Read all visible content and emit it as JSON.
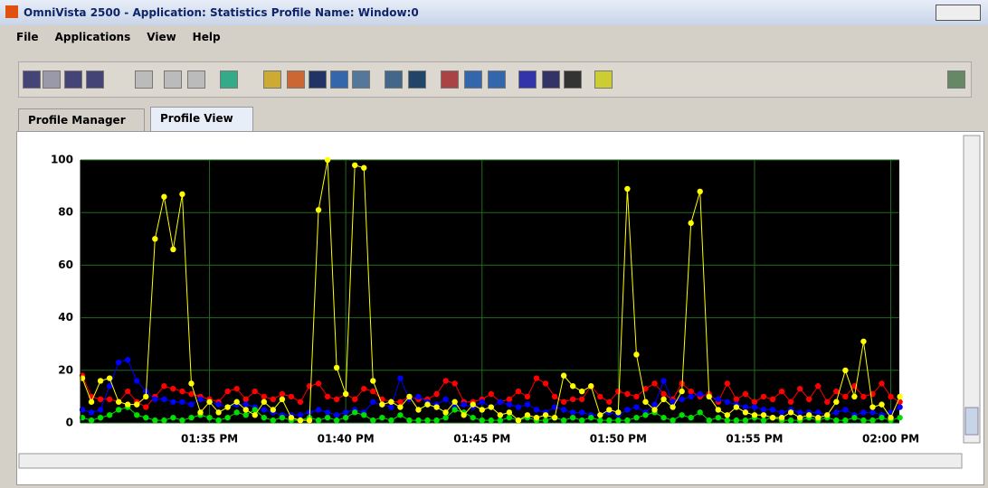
{
  "window": {
    "title": "OmniVista 2500 -  Application: Statistics  Profile Name:   Window:0"
  },
  "menu": [
    "File",
    "Applications",
    "View",
    "Help"
  ],
  "tabs": [
    "Profile Manager",
    "Profile View"
  ],
  "chart_data": {
    "type": "line",
    "categories": [
      null,
      null,
      null,
      null,
      null,
      null,
      null,
      null,
      null,
      null,
      null,
      null,
      null,
      null,
      "01:35 PM",
      null,
      null,
      null,
      null,
      null,
      null,
      null,
      null,
      null,
      null,
      null,
      null,
      null,
      null,
      "01:40 PM",
      null,
      null,
      null,
      null,
      null,
      null,
      null,
      null,
      null,
      null,
      null,
      null,
      null,
      null,
      "01:45 PM",
      null,
      null,
      null,
      null,
      null,
      null,
      null,
      null,
      null,
      null,
      null,
      null,
      null,
      null,
      "01:50 PM",
      null,
      null,
      null,
      null,
      null,
      null,
      null,
      null,
      null,
      null,
      null,
      null,
      null,
      null,
      "01:55 PM",
      null,
      null,
      null,
      null,
      null,
      null,
      null,
      null,
      null,
      null,
      null,
      null,
      null,
      null,
      "02:00 PM",
      null
    ],
    "series": [
      {
        "color": "#ff0000",
        "values": [
          18,
          10,
          9,
          9,
          8,
          12,
          8,
          6,
          10,
          14,
          13,
          12,
          11,
          10,
          9,
          8,
          12,
          13,
          9,
          12,
          10,
          9,
          11,
          10,
          8,
          14,
          15,
          10,
          9,
          11,
          9,
          13,
          12,
          9,
          8,
          8,
          10,
          9,
          9,
          11,
          16,
          15,
          8,
          8,
          9,
          11,
          8,
          9,
          12,
          10,
          17,
          15,
          10,
          8,
          9,
          9,
          14,
          10,
          8,
          12,
          11,
          10,
          13,
          15,
          11,
          9,
          15,
          12,
          10,
          11,
          8,
          15,
          9,
          11,
          8,
          10,
          9,
          12,
          8,
          13,
          9,
          14,
          8,
          12,
          10,
          14,
          10,
          11,
          15,
          10,
          8
        ]
      },
      {
        "color": "#0000ff",
        "values": [
          5,
          4,
          5,
          14,
          23,
          24,
          16,
          12,
          9,
          9,
          8,
          8,
          7,
          9,
          8,
          7,
          6,
          7,
          7,
          6,
          5,
          4,
          3,
          3,
          3,
          4,
          5,
          4,
          3,
          4,
          5,
          4,
          8,
          7,
          6,
          17,
          9,
          10,
          8,
          7,
          9,
          6,
          7,
          6,
          8,
          6,
          8,
          7,
          6,
          7,
          5,
          4,
          6,
          5,
          4,
          4,
          3,
          3,
          4,
          3,
          5,
          6,
          4,
          7,
          16,
          8,
          9,
          10,
          11,
          10,
          9,
          8,
          7,
          6,
          6,
          5,
          5,
          4,
          5,
          4,
          4,
          4,
          3,
          4,
          5,
          3,
          4,
          4,
          3,
          4,
          6
        ]
      },
      {
        "color": "#00e000",
        "values": [
          2,
          1,
          2,
          3,
          5,
          6,
          3,
          2,
          1,
          1,
          2,
          1,
          2,
          3,
          2,
          1,
          2,
          4,
          3,
          5,
          2,
          1,
          2,
          1,
          1,
          2,
          1,
          2,
          1,
          2,
          4,
          3,
          1,
          2,
          1,
          3,
          1,
          1,
          1,
          1,
          2,
          5,
          4,
          2,
          1,
          1,
          1,
          2,
          1,
          2,
          1,
          1,
          2,
          1,
          2,
          1,
          2,
          1,
          1,
          1,
          1,
          2,
          3,
          4,
          2,
          1,
          3,
          2,
          4,
          1,
          2,
          1,
          1,
          1,
          2,
          1,
          2,
          1,
          1,
          1,
          2,
          1,
          2,
          1,
          1,
          2,
          1,
          1,
          2,
          1,
          2
        ]
      },
      {
        "color": "#ffff00",
        "values": [
          17,
          8,
          16,
          17,
          8,
          7,
          7,
          10,
          70,
          86,
          66,
          87,
          15,
          4,
          8,
          4,
          6,
          8,
          5,
          3,
          8,
          5,
          9,
          2,
          1,
          1,
          81,
          100,
          21,
          11,
          98,
          97,
          16,
          7,
          8,
          6,
          10,
          5,
          7,
          6,
          4,
          8,
          3,
          7,
          5,
          6,
          3,
          4,
          1,
          3,
          2,
          3,
          2,
          18,
          14,
          12,
          14,
          3,
          5,
          4,
          89,
          26,
          8,
          5,
          9,
          6,
          12,
          76,
          88,
          10,
          5,
          3,
          6,
          4,
          3,
          3,
          2,
          2,
          4,
          2,
          3,
          2,
          3,
          8,
          20,
          10,
          31,
          6,
          7,
          2,
          10
        ]
      }
    ],
    "ylim": [
      0,
      100
    ],
    "yticks": [
      0,
      20,
      40,
      60,
      80,
      100
    ],
    "grid": true,
    "grid_color": "#1f6b1f",
    "background": "#000000"
  }
}
